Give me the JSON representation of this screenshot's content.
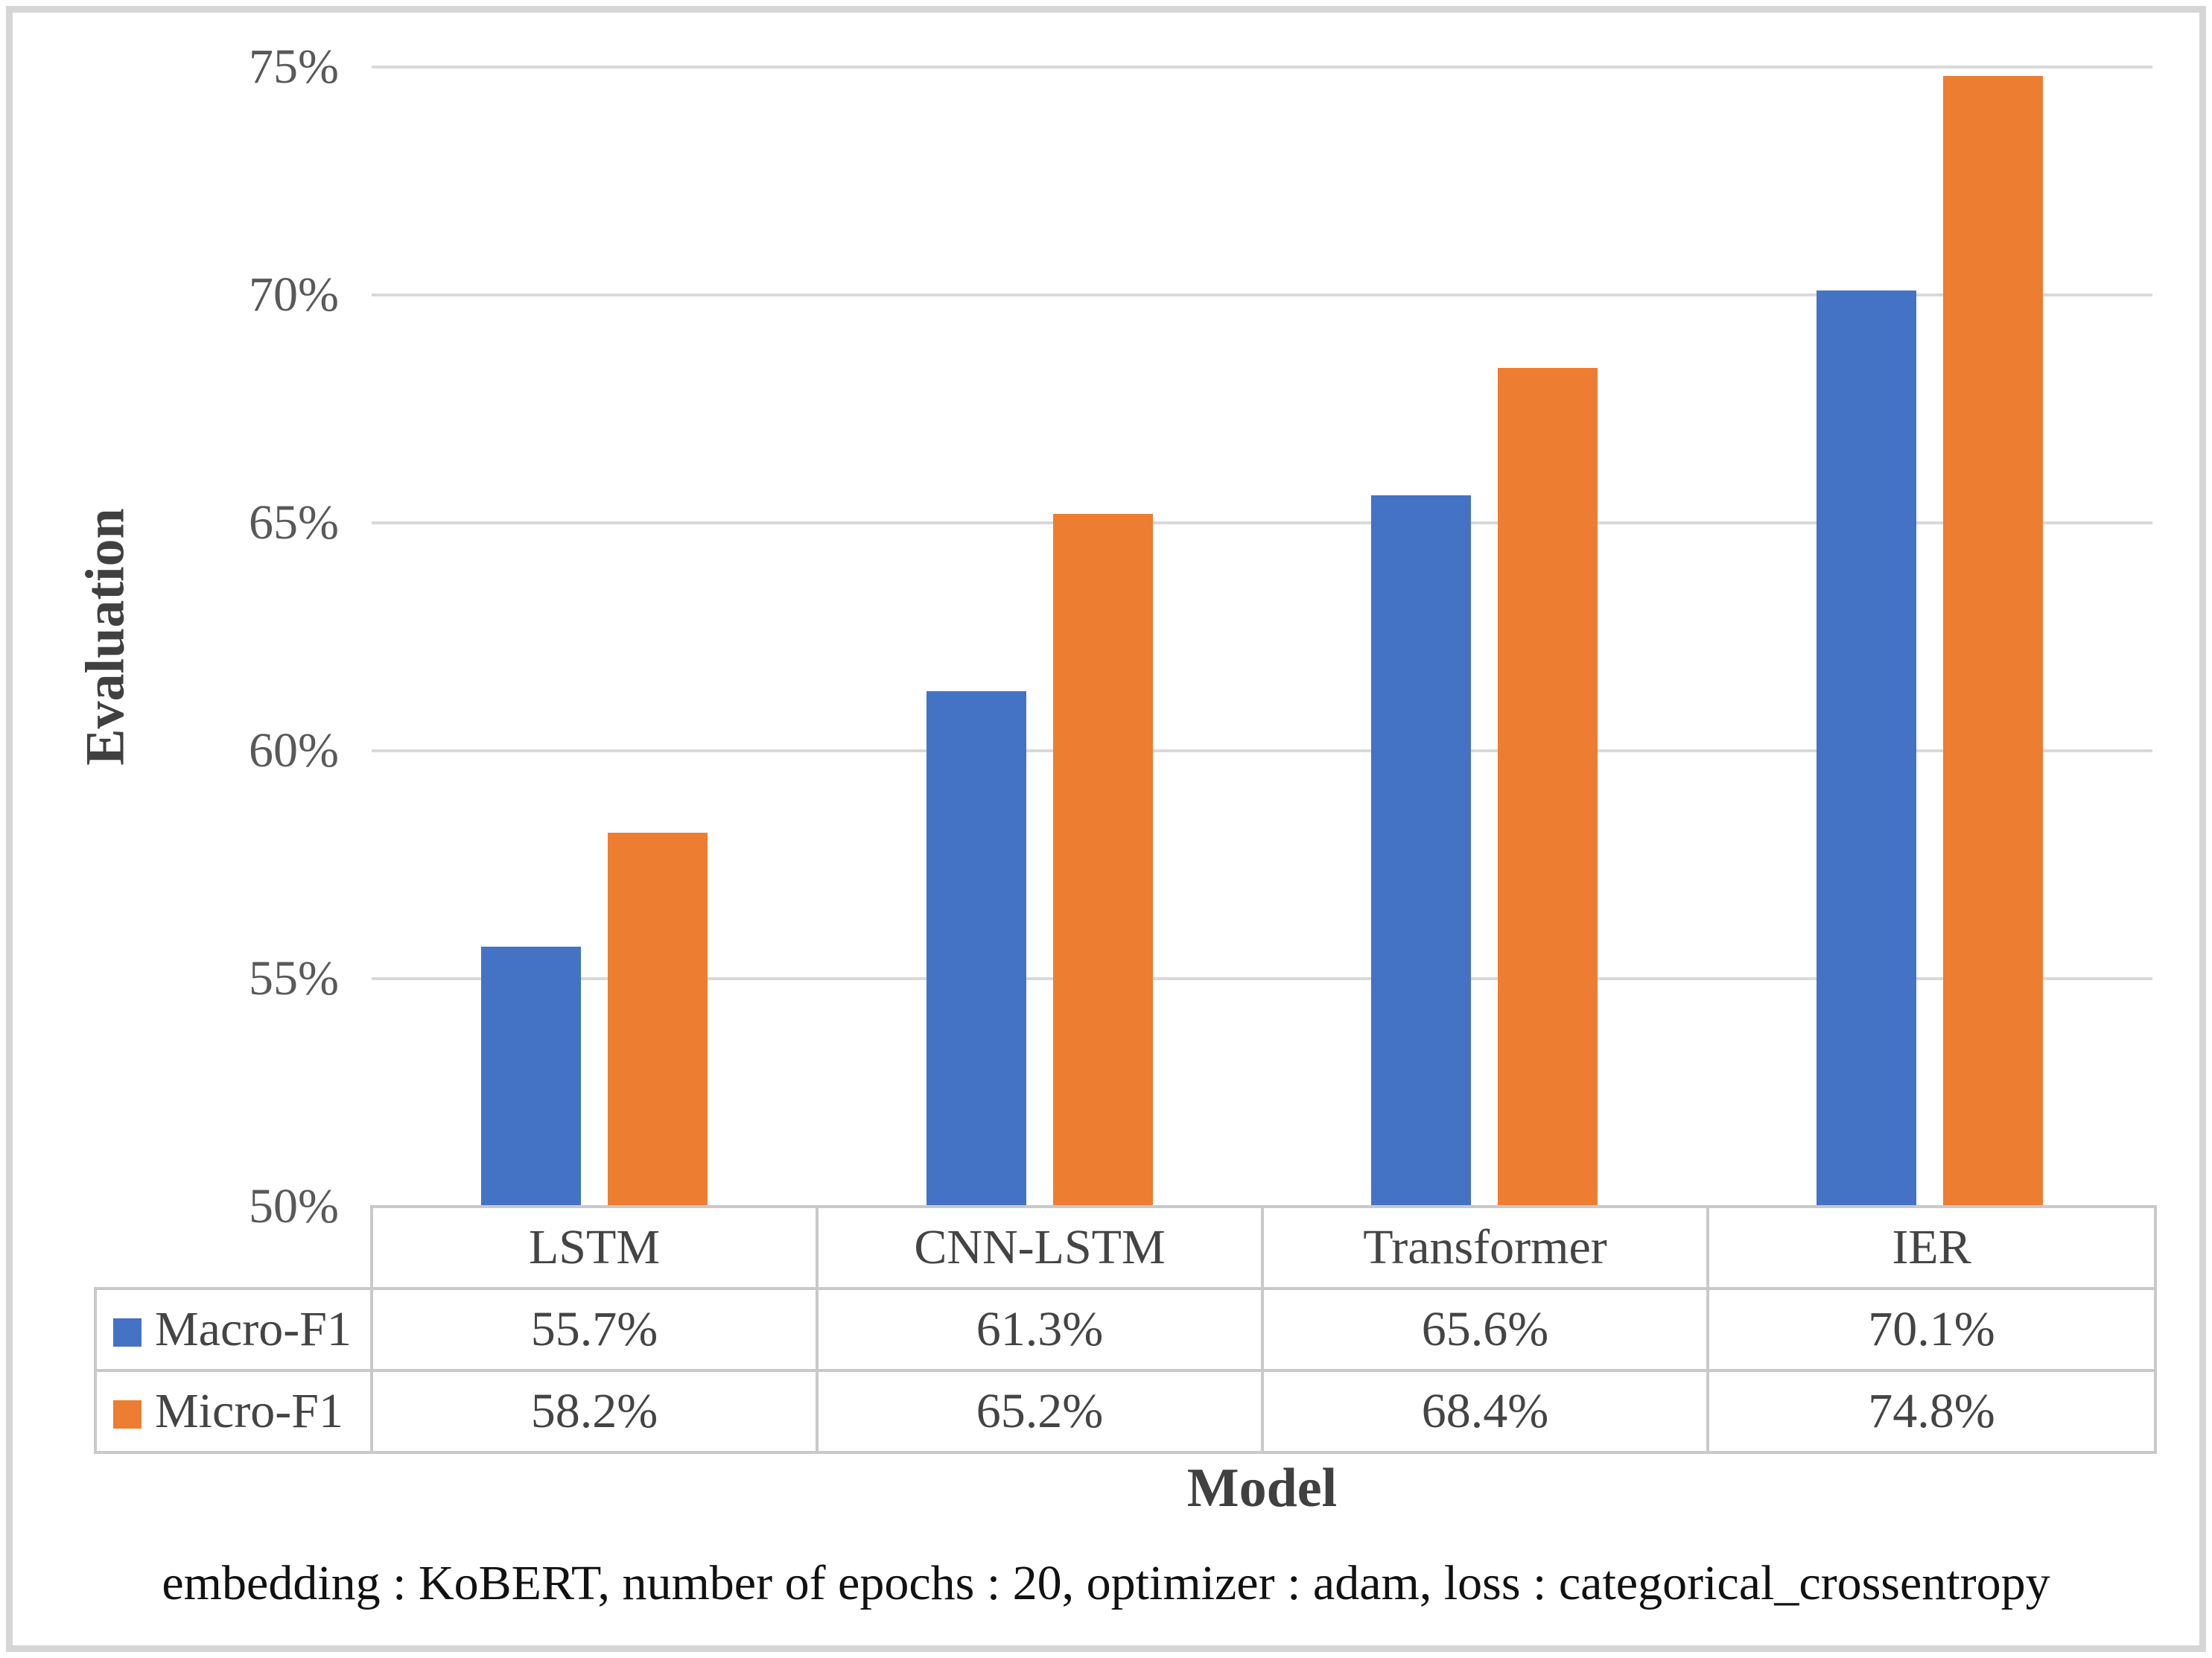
{
  "figure": {
    "background_color": "#ffffff",
    "frame_border_color": "#d6d6d6"
  },
  "chart_data": {
    "type": "bar",
    "title": "",
    "categories": [
      "LSTM",
      "CNN-LSTM",
      "Transformer",
      "IER"
    ],
    "series": [
      {
        "name": "Macro-F1",
        "color": "#4472C4",
        "values": [
          55.7,
          61.3,
          65.6,
          70.1
        ],
        "value_labels": [
          "55.7%",
          "61.3%",
          "65.6%",
          "70.1%"
        ]
      },
      {
        "name": "Micro-F1",
        "color": "#ED7D31",
        "values": [
          58.2,
          65.2,
          68.4,
          74.8
        ],
        "value_labels": [
          "58.2%",
          "65.2%",
          "68.4%",
          "74.8%"
        ]
      }
    ],
    "xlabel": "Model",
    "ylabel": "Evaluation",
    "ylim": [
      50,
      75
    ],
    "ytick_step": 5,
    "ytick_labels": [
      "50%",
      "55%",
      "60%",
      "65%",
      "70%",
      "75%"
    ],
    "grid": true,
    "gridline_color": "#d9d9d9",
    "legend_position": "data-table-left",
    "data_table_shown": true,
    "table_border_color": "#c9c9c9",
    "tick_text_color": "#595959",
    "table_text_color": "#444444",
    "axis_title_color": "#404040"
  },
  "caption": "embedding : KoBERT, number of epochs : 20, optimizer : adam, loss : categorical_crossentropy"
}
